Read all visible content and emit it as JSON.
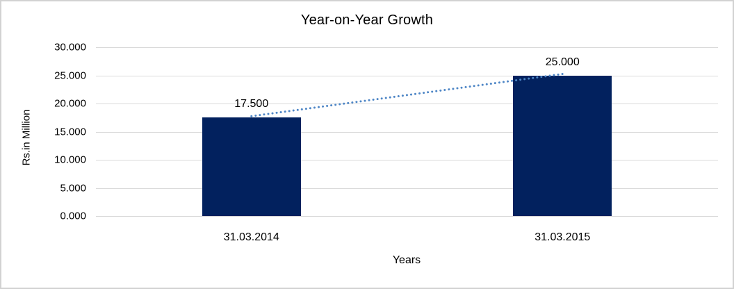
{
  "chart_data": {
    "type": "bar",
    "title": "Year-on-Year Growth",
    "xlabel": "Years",
    "ylabel": "Rs.in Million",
    "categories": [
      "31.03.2014",
      "31.03.2015"
    ],
    "values": [
      17.5,
      25.0
    ],
    "data_labels": [
      "17.500",
      "25.000"
    ],
    "ylim": [
      0,
      30
    ],
    "y_ticks": [
      0,
      5,
      10,
      15,
      20,
      25,
      30
    ],
    "y_tick_labels": [
      "0.000",
      "5.000",
      "10.000",
      "15.000",
      "20.000",
      "25.000",
      "30.000"
    ],
    "grid": true,
    "legend": "none",
    "bar_color": "#02215e",
    "gridline_color": "#d9d9d9",
    "trendline": {
      "type": "linear",
      "style": "dotted",
      "color": "#4e86c6"
    }
  }
}
